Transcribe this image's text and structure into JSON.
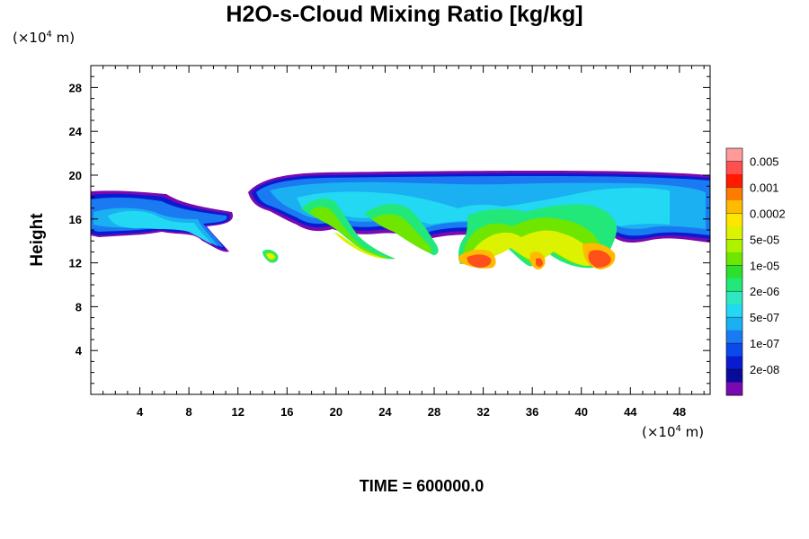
{
  "chart_data": {
    "type": "heatmap",
    "title": "H2O-s-Cloud Mixing Ratio [kg/kg]",
    "ylabel": "Height",
    "x_unit": {
      "prefix": "(×10",
      "exp": "4",
      "suffix": " m)"
    },
    "y_unit": {
      "prefix": "(×10",
      "exp": "4",
      "suffix": " m)"
    },
    "xlim": [
      0,
      50.5
    ],
    "ylim": [
      0,
      30
    ],
    "x_ticks": [
      4,
      8,
      12,
      16,
      20,
      24,
      28,
      32,
      36,
      40,
      44,
      48
    ],
    "y_ticks": [
      4,
      8,
      12,
      16,
      20,
      24,
      28
    ],
    "colorbar": {
      "labels": [
        "0.005",
        "0.001",
        "0.0002",
        "5e-05",
        "1e-05",
        "2e-06",
        "5e-07",
        "1e-07",
        "2e-08"
      ],
      "colors_top_to_bottom": [
        "#ff9a9a",
        "#ff4f4f",
        "#ff1a00",
        "#ff7a00",
        "#ffbb00",
        "#ffe600",
        "#ddf200",
        "#aef200",
        "#6ee600",
        "#2ee02e",
        "#22e87a",
        "#2ee8c0",
        "#22d8f2",
        "#1ab0f2",
        "#1a7af2",
        "#0a4aea",
        "#0a1ad0",
        "#0a0a9a",
        "#7a0ab0"
      ]
    },
    "cloud_regions": [
      {
        "desc": "upper anvil layer",
        "x": [
          0,
          50.5
        ],
        "y": [
          14.5,
          20.2
        ],
        "level": "1e-07"
      },
      {
        "desc": "left low cell",
        "x": [
          14.3,
          15.5
        ],
        "y": [
          12.2,
          13.2
        ],
        "level": "5e-05"
      },
      {
        "desc": "core near x=31",
        "x": [
          30.5,
          33.5
        ],
        "y": [
          12.3,
          13.3
        ],
        "level": "0.0002"
      },
      {
        "desc": "core near x=37",
        "x": [
          36.3,
          37.5
        ],
        "y": [
          11.8,
          12.8
        ],
        "level": "0.0002"
      },
      {
        "desc": "core near x=42",
        "x": [
          40.8,
          43.2
        ],
        "y": [
          12.2,
          13.8
        ],
        "level": "0.0002"
      }
    ],
    "grid": false,
    "legend_position": "right"
  },
  "time_label": "TIME = 600000.0"
}
